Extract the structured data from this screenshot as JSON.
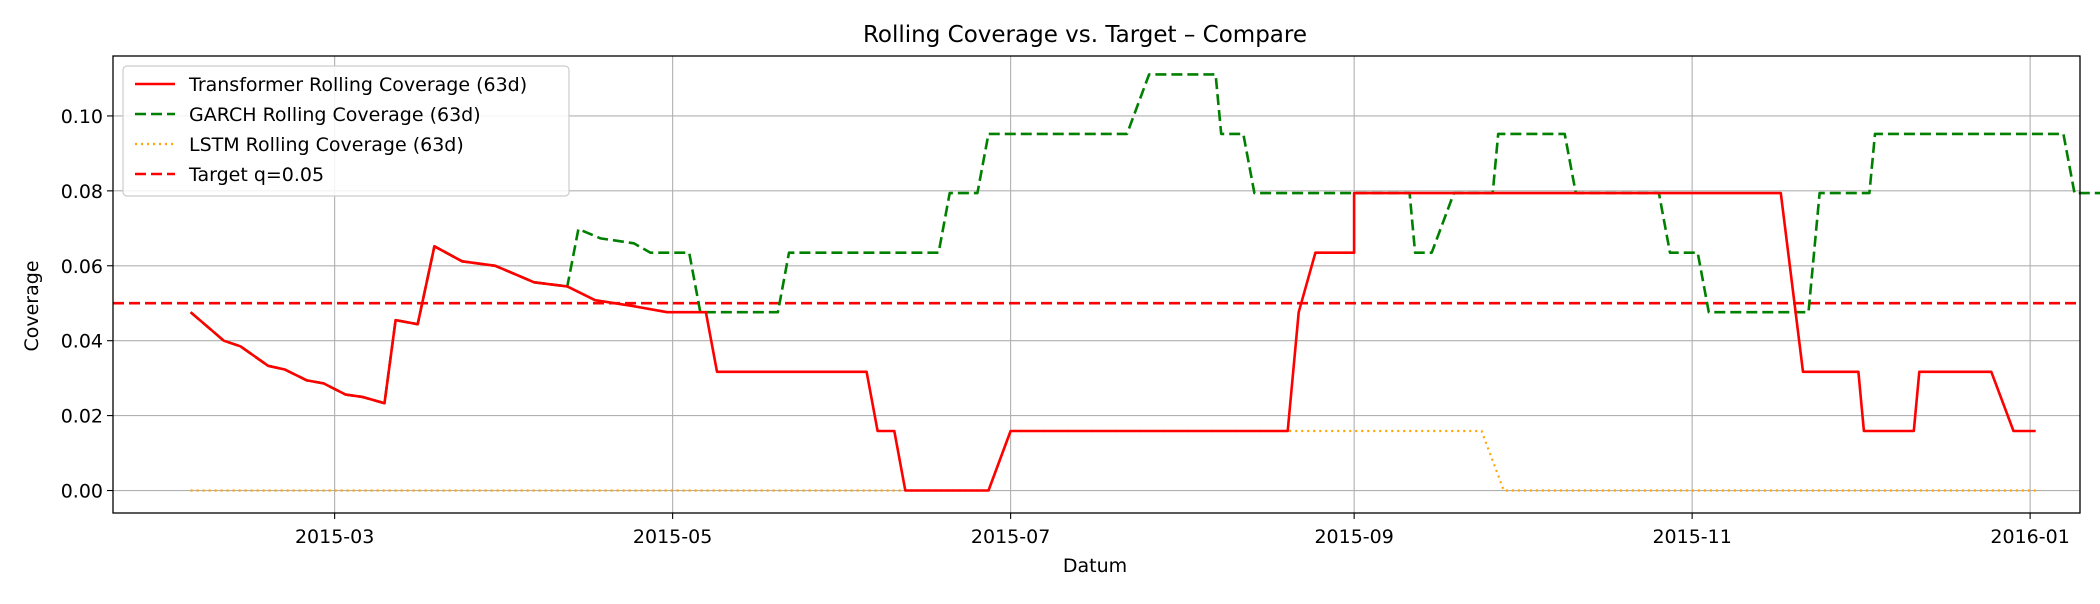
{
  "chart_data": {
    "type": "line",
    "title": "Rolling Coverage vs. Target – Compare",
    "xlabel": "Datum",
    "ylabel": "Coverage",
    "xlim": [
      "2015-01-20",
      "2016-01-10"
    ],
    "ylim": [
      -0.006,
      0.116
    ],
    "x_ticks": [
      "2015-03-01",
      "2015-05-01",
      "2015-07-01",
      "2015-09-01",
      "2015-11-01",
      "2016-01-01"
    ],
    "x_tick_labels": [
      "2015-03",
      "2015-05",
      "2015-07",
      "2015-09",
      "2015-11",
      "2016-01"
    ],
    "y_ticks": [
      0.0,
      0.02,
      0.04,
      0.06,
      0.08,
      0.1
    ],
    "y_tick_labels": [
      "0.00",
      "0.02",
      "0.04",
      "0.06",
      "0.08",
      "0.10"
    ],
    "grid": true,
    "legend_position": "top-left",
    "target": {
      "name": "Target q=0.05",
      "value": 0.05,
      "color": "#ff0000",
      "style": "dashed"
    },
    "series": [
      {
        "name": "Transformer Rolling Coverage (63d)",
        "color": "#ff0000",
        "style": "solid",
        "points": [
          [
            "2015-02-03",
            0.0476
          ],
          [
            "2015-02-09",
            0.04
          ],
          [
            "2015-02-12",
            0.0385
          ],
          [
            "2015-02-17",
            0.0333
          ],
          [
            "2015-02-20",
            0.0323
          ],
          [
            "2015-02-24",
            0.0294
          ],
          [
            "2015-02-27",
            0.0286
          ],
          [
            "2015-03-03",
            0.0256
          ],
          [
            "2015-03-06",
            0.025
          ],
          [
            "2015-03-10",
            0.0233
          ],
          [
            "2015-03-12",
            0.0455
          ],
          [
            "2015-03-16",
            0.0444
          ],
          [
            "2015-03-19",
            0.0652
          ],
          [
            "2015-03-24",
            0.0612
          ],
          [
            "2015-03-30",
            0.06
          ],
          [
            "2015-04-06",
            0.0556
          ],
          [
            "2015-04-12",
            0.0545
          ],
          [
            "2015-04-17",
            0.0508
          ],
          [
            "2015-04-24",
            0.0492
          ],
          [
            "2015-04-30",
            0.0476
          ],
          [
            "2015-05-07",
            0.0476
          ],
          [
            "2015-05-09",
            0.0317
          ],
          [
            "2015-06-05",
            0.0317
          ],
          [
            "2015-06-07",
            0.0159
          ],
          [
            "2015-06-10",
            0.0159
          ],
          [
            "2015-06-12",
            0.0
          ],
          [
            "2015-06-27",
            0.0
          ],
          [
            "2015-07-01",
            0.0159
          ],
          [
            "2015-08-20",
            0.0159
          ],
          [
            "2015-08-22",
            0.0476
          ],
          [
            "2015-08-25",
            0.0635
          ],
          [
            "2015-09-01",
            0.0635
          ],
          [
            "2015-09-01",
            0.0794
          ],
          [
            "2015-11-17",
            0.0794
          ],
          [
            "2015-11-21",
            0.0317
          ],
          [
            "2015-12-01",
            0.0317
          ],
          [
            "2015-12-02",
            0.0159
          ],
          [
            "2015-12-11",
            0.0159
          ],
          [
            "2015-12-12",
            0.0317
          ],
          [
            "2015-12-25",
            0.0317
          ],
          [
            "2015-12-29",
            0.0159
          ],
          [
            "2016-01-02",
            0.0159
          ]
        ]
      },
      {
        "name": "GARCH Rolling Coverage (63d)",
        "color": "#008000",
        "style": "dashed",
        "points": [
          [
            "2015-02-03",
            0.0476
          ],
          [
            "2015-02-09",
            0.04
          ],
          [
            "2015-02-12",
            0.0385
          ],
          [
            "2015-02-17",
            0.0333
          ],
          [
            "2015-02-20",
            0.0323
          ],
          [
            "2015-02-24",
            0.0294
          ],
          [
            "2015-02-27",
            0.0286
          ],
          [
            "2015-03-03",
            0.0256
          ],
          [
            "2015-03-06",
            0.025
          ],
          [
            "2015-03-10",
            0.0233
          ],
          [
            "2015-03-12",
            0.0455
          ],
          [
            "2015-03-16",
            0.0444
          ],
          [
            "2015-03-19",
            0.0652
          ],
          [
            "2015-03-24",
            0.0612
          ],
          [
            "2015-03-30",
            0.06
          ],
          [
            "2015-04-06",
            0.0556
          ],
          [
            "2015-04-12",
            0.0545
          ],
          [
            "2015-04-14",
            0.0698
          ],
          [
            "2015-04-18",
            0.0673
          ],
          [
            "2015-04-24",
            0.066
          ],
          [
            "2015-04-27",
            0.0635
          ],
          [
            "2015-05-04",
            0.0635
          ],
          [
            "2015-05-06",
            0.0476
          ],
          [
            "2015-05-20",
            0.0476
          ],
          [
            "2015-05-22",
            0.0635
          ],
          [
            "2015-06-18",
            0.0635
          ],
          [
            "2015-06-20",
            0.0794
          ],
          [
            "2015-06-25",
            0.0794
          ],
          [
            "2015-06-27",
            0.0952
          ],
          [
            "2015-07-22",
            0.0952
          ],
          [
            "2015-07-26",
            0.1111
          ],
          [
            "2015-08-07",
            0.1111
          ],
          [
            "2015-08-08",
            0.0952
          ],
          [
            "2015-08-12",
            0.0952
          ],
          [
            "2015-08-14",
            0.0794
          ],
          [
            "2015-09-11",
            0.0794
          ],
          [
            "2015-09-12",
            0.0635
          ],
          [
            "2015-09-15",
            0.0635
          ],
          [
            "2015-09-19",
            0.0794
          ],
          [
            "2015-09-26",
            0.0794
          ],
          [
            "2015-09-27",
            0.0952
          ],
          [
            "2015-10-09",
            0.0952
          ],
          [
            "2015-10-11",
            0.0794
          ],
          [
            "2015-10-26",
            0.0794
          ],
          [
            "2015-10-28",
            0.0635
          ],
          [
            "2015-11-02",
            0.0635
          ],
          [
            "2015-11-04",
            0.0476
          ],
          [
            "2015-11-22",
            0.0476
          ],
          [
            "2015-11-24",
            0.0794
          ],
          [
            "2015-12-03",
            0.0794
          ],
          [
            "2015-12-04",
            0.0952
          ],
          [
            "2016-01-07",
            0.0952
          ],
          [
            "2016-01-09",
            0.0794
          ],
          [
            "2016-02-18",
            0.0794
          ]
        ]
      },
      {
        "name": "LSTM Rolling Coverage (63d)",
        "color": "#ffa500",
        "style": "dotted",
        "points": [
          [
            "2015-02-03",
            0.0
          ],
          [
            "2015-06-27",
            0.0
          ],
          [
            "2015-07-01",
            0.0159
          ],
          [
            "2015-09-24",
            0.0159
          ],
          [
            "2015-09-28",
            0.0
          ],
          [
            "2016-01-02",
            0.0
          ]
        ]
      }
    ]
  }
}
